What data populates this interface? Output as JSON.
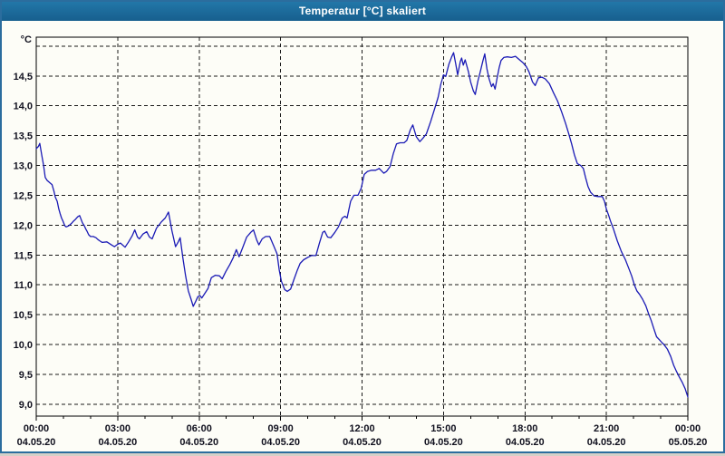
{
  "window": {
    "title": "Temperatur [°C] skaliert"
  },
  "colors": {
    "titlebar": "#1c6a9a",
    "window_border": "#2b6d9e",
    "plot_background": "#fdfdf7",
    "grid": "#1a1a1a",
    "axis": "#000000",
    "line": "#1a1ab5",
    "label": "#10101e",
    "title_text": "#ffffff"
  },
  "chart_data": {
    "type": "line",
    "title": "Temperatur [°C] skaliert",
    "ylabel": "°C",
    "xlabel": "",
    "legend": "none",
    "grid": "dashed",
    "ylim": [
      8.8,
      15.15
    ],
    "xlim_hours": [
      0,
      24
    ],
    "y_ticks": [
      {
        "value": 9.0,
        "label": "9,0"
      },
      {
        "value": 9.5,
        "label": "9,5"
      },
      {
        "value": 10.0,
        "label": "10,0"
      },
      {
        "value": 10.5,
        "label": "10,5"
      },
      {
        "value": 11.0,
        "label": "11,0"
      },
      {
        "value": 11.5,
        "label": "11,5"
      },
      {
        "value": 12.0,
        "label": "12,0"
      },
      {
        "value": 12.5,
        "label": "12,5"
      },
      {
        "value": 13.0,
        "label": "13,0"
      },
      {
        "value": 13.5,
        "label": "13,5"
      },
      {
        "value": 14.0,
        "label": "14,0"
      },
      {
        "value": 14.5,
        "label": "14,5"
      },
      {
        "value": 15.0,
        "label": ""
      }
    ],
    "x_ticks": [
      {
        "hour": 0,
        "time": "00:00",
        "date": "04.05.20"
      },
      {
        "hour": 3,
        "time": "03:00",
        "date": "04.05.20"
      },
      {
        "hour": 6,
        "time": "06:00",
        "date": "04.05.20"
      },
      {
        "hour": 9,
        "time": "09:00",
        "date": "04.05.20"
      },
      {
        "hour": 12,
        "time": "12:00",
        "date": "04.05.20"
      },
      {
        "hour": 15,
        "time": "15:00",
        "date": "04.05.20"
      },
      {
        "hour": 18,
        "time": "18:00",
        "date": "04.05.20"
      },
      {
        "hour": 21,
        "time": "21:00",
        "date": "04.05.20"
      },
      {
        "hour": 24,
        "time": "00:00",
        "date": "05.05.20"
      }
    ],
    "minor_tick_every_hours": 1,
    "series": [
      {
        "name": "Temperatur",
        "points": [
          [
            0.0,
            13.28
          ],
          [
            0.08,
            13.32
          ],
          [
            0.13,
            13.37
          ],
          [
            0.2,
            13.18
          ],
          [
            0.27,
            13.0
          ],
          [
            0.33,
            12.8
          ],
          [
            0.4,
            12.75
          ],
          [
            0.5,
            12.71
          ],
          [
            0.58,
            12.68
          ],
          [
            0.65,
            12.57
          ],
          [
            0.7,
            12.47
          ],
          [
            0.77,
            12.4
          ],
          [
            0.83,
            12.27
          ],
          [
            0.88,
            12.19
          ],
          [
            0.93,
            12.12
          ],
          [
            0.98,
            12.07
          ],
          [
            1.05,
            11.99
          ],
          [
            1.1,
            11.97
          ],
          [
            1.2,
            11.99
          ],
          [
            1.3,
            12.03
          ],
          [
            1.38,
            12.07
          ],
          [
            1.43,
            12.09
          ],
          [
            1.53,
            12.14
          ],
          [
            1.6,
            12.16
          ],
          [
            1.7,
            12.04
          ],
          [
            1.77,
            11.99
          ],
          [
            1.82,
            11.94
          ],
          [
            1.88,
            11.89
          ],
          [
            1.93,
            11.84
          ],
          [
            2.0,
            11.81
          ],
          [
            2.1,
            11.81
          ],
          [
            2.2,
            11.79
          ],
          [
            2.27,
            11.76
          ],
          [
            2.33,
            11.74
          ],
          [
            2.43,
            11.71
          ],
          [
            2.6,
            11.72
          ],
          [
            2.8,
            11.66
          ],
          [
            2.88,
            11.64
          ],
          [
            3.0,
            11.68
          ],
          [
            3.1,
            11.7
          ],
          [
            3.27,
            11.63
          ],
          [
            3.4,
            11.72
          ],
          [
            3.53,
            11.82
          ],
          [
            3.63,
            11.92
          ],
          [
            3.73,
            11.8
          ],
          [
            3.8,
            11.77
          ],
          [
            3.93,
            11.85
          ],
          [
            4.07,
            11.89
          ],
          [
            4.17,
            11.8
          ],
          [
            4.27,
            11.77
          ],
          [
            4.43,
            11.95
          ],
          [
            4.6,
            12.05
          ],
          [
            4.75,
            12.12
          ],
          [
            4.87,
            12.22
          ],
          [
            5.0,
            11.9
          ],
          [
            5.13,
            11.64
          ],
          [
            5.23,
            11.72
          ],
          [
            5.3,
            11.79
          ],
          [
            5.4,
            11.45
          ],
          [
            5.5,
            11.15
          ],
          [
            5.6,
            10.9
          ],
          [
            5.7,
            10.76
          ],
          [
            5.78,
            10.64
          ],
          [
            5.87,
            10.72
          ],
          [
            5.95,
            10.8
          ],
          [
            6.03,
            10.82
          ],
          [
            6.1,
            10.78
          ],
          [
            6.2,
            10.85
          ],
          [
            6.33,
            10.94
          ],
          [
            6.45,
            11.12
          ],
          [
            6.6,
            11.16
          ],
          [
            6.75,
            11.15
          ],
          [
            6.85,
            11.1
          ],
          [
            6.98,
            11.22
          ],
          [
            7.13,
            11.34
          ],
          [
            7.25,
            11.45
          ],
          [
            7.37,
            11.59
          ],
          [
            7.47,
            11.47
          ],
          [
            7.6,
            11.62
          ],
          [
            7.75,
            11.8
          ],
          [
            7.9,
            11.88
          ],
          [
            8.0,
            11.92
          ],
          [
            8.12,
            11.75
          ],
          [
            8.2,
            11.67
          ],
          [
            8.32,
            11.77
          ],
          [
            8.45,
            11.81
          ],
          [
            8.6,
            11.81
          ],
          [
            8.75,
            11.65
          ],
          [
            8.87,
            11.52
          ],
          [
            8.95,
            11.25
          ],
          [
            9.03,
            11.06
          ],
          [
            9.15,
            10.92
          ],
          [
            9.25,
            10.89
          ],
          [
            9.37,
            10.93
          ],
          [
            9.5,
            11.1
          ],
          [
            9.62,
            11.25
          ],
          [
            9.72,
            11.36
          ],
          [
            9.85,
            11.42
          ],
          [
            10.0,
            11.46
          ],
          [
            10.13,
            11.49
          ],
          [
            10.3,
            11.49
          ],
          [
            10.43,
            11.7
          ],
          [
            10.55,
            11.88
          ],
          [
            10.62,
            11.9
          ],
          [
            10.73,
            11.8
          ],
          [
            10.85,
            11.79
          ],
          [
            11.0,
            11.88
          ],
          [
            11.13,
            11.97
          ],
          [
            11.27,
            12.12
          ],
          [
            11.37,
            12.15
          ],
          [
            11.45,
            12.12
          ],
          [
            11.58,
            12.4
          ],
          [
            11.7,
            12.5
          ],
          [
            11.85,
            12.5
          ],
          [
            11.97,
            12.62
          ],
          [
            12.08,
            12.85
          ],
          [
            12.2,
            12.9
          ],
          [
            12.35,
            12.92
          ],
          [
            12.5,
            12.92
          ],
          [
            12.63,
            12.95
          ],
          [
            12.8,
            12.87
          ],
          [
            12.9,
            12.9
          ],
          [
            13.03,
            12.98
          ],
          [
            13.15,
            13.2
          ],
          [
            13.27,
            13.36
          ],
          [
            13.4,
            13.38
          ],
          [
            13.55,
            13.38
          ],
          [
            13.65,
            13.42
          ],
          [
            13.78,
            13.6
          ],
          [
            13.87,
            13.68
          ],
          [
            14.0,
            13.48
          ],
          [
            14.13,
            13.4
          ],
          [
            14.25,
            13.46
          ],
          [
            14.37,
            13.53
          ],
          [
            14.53,
            13.74
          ],
          [
            14.68,
            13.96
          ],
          [
            14.8,
            14.14
          ],
          [
            14.9,
            14.36
          ],
          [
            15.0,
            14.52
          ],
          [
            15.08,
            14.49
          ],
          [
            15.2,
            14.7
          ],
          [
            15.3,
            14.82
          ],
          [
            15.37,
            14.89
          ],
          [
            15.45,
            14.7
          ],
          [
            15.52,
            14.52
          ],
          [
            15.62,
            14.74
          ],
          [
            15.67,
            14.8
          ],
          [
            15.73,
            14.68
          ],
          [
            15.8,
            14.77
          ],
          [
            15.92,
            14.57
          ],
          [
            16.0,
            14.4
          ],
          [
            16.1,
            14.25
          ],
          [
            16.17,
            14.19
          ],
          [
            16.27,
            14.42
          ],
          [
            16.35,
            14.56
          ],
          [
            16.45,
            14.75
          ],
          [
            16.52,
            14.87
          ],
          [
            16.6,
            14.62
          ],
          [
            16.68,
            14.45
          ],
          [
            16.77,
            14.32
          ],
          [
            16.83,
            14.37
          ],
          [
            16.9,
            14.28
          ],
          [
            16.98,
            14.48
          ],
          [
            17.05,
            14.64
          ],
          [
            17.12,
            14.76
          ],
          [
            17.22,
            14.81
          ],
          [
            17.35,
            14.82
          ],
          [
            17.5,
            14.81
          ],
          [
            17.65,
            14.83
          ],
          [
            17.8,
            14.77
          ],
          [
            17.93,
            14.72
          ],
          [
            18.05,
            14.66
          ],
          [
            18.15,
            14.57
          ],
          [
            18.28,
            14.4
          ],
          [
            18.38,
            14.34
          ],
          [
            18.5,
            14.47
          ],
          [
            18.62,
            14.48
          ],
          [
            18.75,
            14.45
          ],
          [
            18.9,
            14.37
          ],
          [
            19.05,
            14.22
          ],
          [
            19.2,
            14.08
          ],
          [
            19.35,
            13.9
          ],
          [
            19.5,
            13.7
          ],
          [
            19.62,
            13.52
          ],
          [
            19.72,
            13.36
          ],
          [
            19.82,
            13.18
          ],
          [
            19.93,
            13.03
          ],
          [
            20.05,
            13.0
          ],
          [
            20.15,
            12.95
          ],
          [
            20.23,
            12.8
          ],
          [
            20.32,
            12.65
          ],
          [
            20.42,
            12.55
          ],
          [
            20.55,
            12.49
          ],
          [
            20.7,
            12.48
          ],
          [
            20.85,
            12.48
          ],
          [
            20.93,
            12.4
          ],
          [
            21.0,
            12.27
          ],
          [
            21.08,
            12.17
          ],
          [
            21.15,
            12.07
          ],
          [
            21.25,
            11.95
          ],
          [
            21.4,
            11.74
          ],
          [
            21.55,
            11.56
          ],
          [
            21.7,
            11.42
          ],
          [
            21.82,
            11.28
          ],
          [
            21.93,
            11.15
          ],
          [
            22.03,
            11.0
          ],
          [
            22.12,
            10.9
          ],
          [
            22.22,
            10.84
          ],
          [
            22.33,
            10.76
          ],
          [
            22.45,
            10.65
          ],
          [
            22.55,
            10.52
          ],
          [
            22.65,
            10.4
          ],
          [
            22.75,
            10.26
          ],
          [
            22.85,
            10.13
          ],
          [
            22.95,
            10.08
          ],
          [
            23.05,
            10.03
          ],
          [
            23.12,
            10.0
          ],
          [
            23.25,
            9.92
          ],
          [
            23.37,
            9.8
          ],
          [
            23.48,
            9.65
          ],
          [
            23.58,
            9.55
          ],
          [
            23.68,
            9.46
          ],
          [
            23.8,
            9.36
          ],
          [
            23.9,
            9.26
          ],
          [
            24.0,
            9.12
          ]
        ]
      }
    ]
  }
}
